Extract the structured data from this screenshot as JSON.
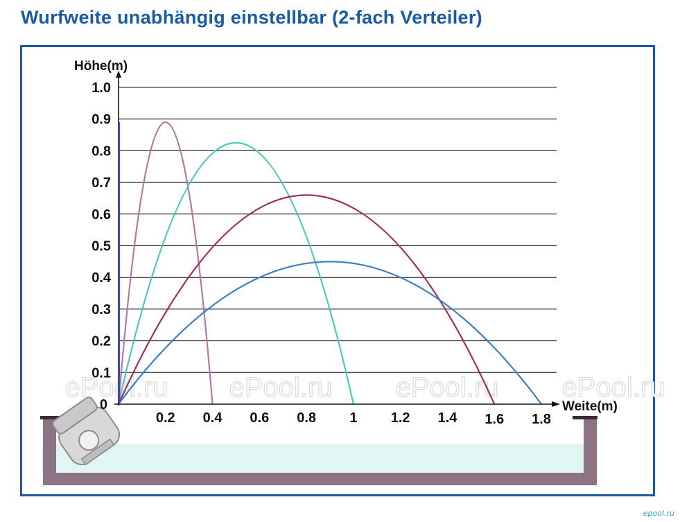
{
  "chart_data": {
    "type": "line",
    "title": "Wurfweite unabhängig einstellbar (2-fach Verteiler)",
    "ylabel": "Höhe(m)",
    "xlabel": "Weite(m)",
    "y_ticks": [
      "0",
      "0.1",
      "0.2",
      "0.3",
      "0.4",
      "0.5",
      "0.6",
      "0.7",
      "0.8",
      "0.9",
      "1.0"
    ],
    "x_ticks": [
      "0.2",
      "0.4",
      "0.6",
      "0.8",
      "1",
      "1.2",
      "1.4",
      "1.6",
      "1.8"
    ],
    "xlim": [
      0,
      1.8
    ],
    "ylim": [
      0,
      1.0
    ],
    "grid": "horizontal",
    "series": [
      {
        "range": 0.4,
        "peak_x": 0.2,
        "peak_y": 0.89,
        "color": "#b07aa8"
      },
      {
        "range": 1.0,
        "peak_x": 0.5,
        "peak_y": 0.825,
        "color": "#4cc7c0"
      },
      {
        "range": 1.6,
        "peak_x": 0.8,
        "peak_y": 0.66,
        "color": "#9e2f5a"
      },
      {
        "range": 1.8,
        "peak_x": 0.9,
        "peak_y": 0.45,
        "color": "#3b7fc6"
      }
    ]
  },
  "watermark": "ePool.ru",
  "brand": "epool.ru"
}
